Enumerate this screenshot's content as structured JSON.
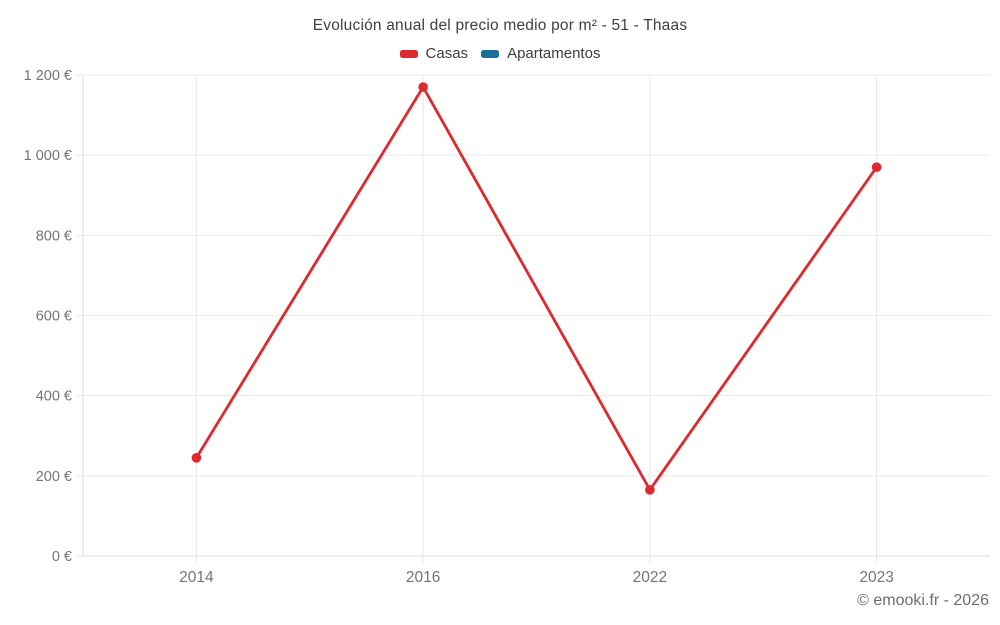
{
  "title": "Evolución anual del precio medio por m² - 51 - Thaas",
  "legend": {
    "items": [
      {
        "label": "Casas",
        "color": "#dc2a2e"
      },
      {
        "label": "Apartamentos",
        "color": "#1c6e9c"
      }
    ]
  },
  "footer": {
    "credit": "© emooki.fr - 2026"
  },
  "chart_data": {
    "type": "line",
    "title": "Evolución anual del precio medio por m² - 51 - Thaas",
    "categories": [
      "2014",
      "2016",
      "2022",
      "2023"
    ],
    "series": [
      {
        "name": "Casas",
        "color": "#dc2a2e",
        "values": [
          245,
          1170,
          165,
          970
        ]
      },
      {
        "name": "Apartamentos",
        "color": "#1c6e9c",
        "values": []
      }
    ],
    "xlabel": "",
    "ylabel": "",
    "ylim": [
      0,
      1200
    ],
    "y_ticks": [
      {
        "value": 0,
        "label": "0 €"
      },
      {
        "value": 200,
        "label": "200 €"
      },
      {
        "value": 400,
        "label": "400 €"
      },
      {
        "value": 600,
        "label": "600 €"
      },
      {
        "value": 800,
        "label": "800 €"
      },
      {
        "value": 1000,
        "label": "1 000 €"
      },
      {
        "value": 1200,
        "label": "1 200 €"
      }
    ],
    "grid": true,
    "legend_position": "top"
  },
  "styles": {
    "grid_color": "#e9e9e9",
    "axis_color": "#dcdcdc",
    "tick_label_color": "#757575",
    "title_color": "#404040",
    "legend_text_color": "#3d3d3d",
    "footer_color": "#6d6d6d"
  }
}
